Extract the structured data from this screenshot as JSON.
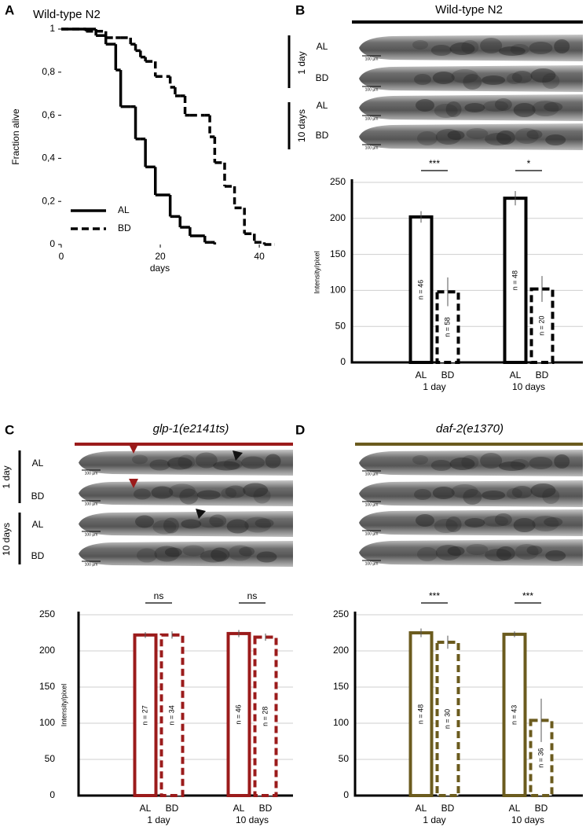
{
  "chart_data": [
    {
      "panel": "A",
      "type": "line",
      "step": true,
      "title": "Wild-type N2",
      "x_label": "days",
      "y_label": "Fraction alive",
      "x": [
        0,
        5,
        7,
        9,
        11,
        12,
        14,
        15,
        16,
        17,
        19,
        22,
        23,
        24,
        25,
        26,
        29,
        30,
        31,
        33,
        35,
        37,
        39,
        41,
        43
      ],
      "series": [
        {
          "name": "AL",
          "color": "#000000",
          "dashed": false,
          "values": [
            1,
            1,
            0.97,
            0.93,
            0.81,
            0.64,
            0.64,
            0.49,
            0.49,
            0.36,
            0.23,
            0.13,
            0.13,
            0.08,
            0.08,
            0.04,
            0.01,
            0.01,
            0,
            null,
            null,
            null,
            null,
            null,
            null
          ]
        },
        {
          "name": "BD",
          "color": "#000000",
          "dashed": true,
          "values": [
            1,
            0.99,
            0.99,
            0.96,
            0.96,
            0.96,
            0.93,
            0.9,
            0.87,
            0.85,
            0.78,
            0.73,
            0.69,
            0.69,
            0.6,
            0.6,
            0.6,
            0.5,
            0.38,
            0.27,
            0.17,
            0.05,
            0.01,
            0,
            0
          ]
        }
      ],
      "xlim": [
        0,
        43
      ],
      "ylim": [
        0,
        1
      ],
      "xticks": [
        0,
        20,
        40
      ],
      "yticks": [
        0,
        {
          "value": 0.2,
          "label": "0,2"
        },
        {
          "value": 0.4,
          "label": "0,4"
        },
        {
          "value": 0.6,
          "label": "0,6"
        },
        {
          "value": 0.8,
          "label": "0,8"
        },
        1
      ],
      "legend": "lower left"
    },
    {
      "panel": "B",
      "type": "bar",
      "title": "Wild-type N2",
      "italic_title": false,
      "image_rows": [
        "1 day",
        "10 days"
      ],
      "image_labels": [
        "AL",
        "BD"
      ],
      "scale_bar": "100 µm",
      "y_label": "Intensity/pixel",
      "groups": [
        "1 day",
        "10 days"
      ],
      "series": [
        {
          "name": "AL",
          "color": "#000000",
          "dashed": false,
          "values": [
            202,
            228
          ],
          "errors": [
            8,
            10
          ],
          "n_labels": [
            "n = 46",
            "n = 48"
          ]
        },
        {
          "name": "BD",
          "color": "#000000",
          "dashed": true,
          "values": [
            98,
            102
          ],
          "errors": [
            20,
            18
          ],
          "n_labels": [
            "n = 58",
            "n = 20"
          ]
        }
      ],
      "significance": [
        "***",
        "*"
      ],
      "ylim": [
        0,
        250
      ],
      "yticks": [
        0,
        50,
        100,
        150,
        200,
        250
      ],
      "grid": true
    },
    {
      "panel": "C",
      "type": "bar",
      "title": "glp-1(e2141ts)",
      "italic_title": true,
      "image_rows": [
        "1 day",
        "10 days"
      ],
      "image_labels": [
        "AL",
        "BD"
      ],
      "scale_bar": "100 µm",
      "y_label": "Intensity/pixel",
      "groups": [
        "1 day",
        "10 days"
      ],
      "series": [
        {
          "name": "AL",
          "color": "#9b1b1b",
          "dashed": false,
          "values": [
            222,
            224
          ],
          "errors": [
            4,
            5
          ],
          "n_labels": [
            "n = 27",
            "n = 46"
          ]
        },
        {
          "name": "BD",
          "color": "#9b1b1b",
          "dashed": true,
          "values": [
            222,
            219
          ],
          "errors": [
            5,
            5
          ],
          "n_labels": [
            "n = 34",
            "n = 28"
          ]
        }
      ],
      "significance": [
        "ns",
        "ns"
      ],
      "ylim": [
        0,
        250
      ],
      "yticks": [
        0,
        50,
        100,
        150,
        200,
        250
      ],
      "grid": true
    },
    {
      "panel": "D",
      "type": "bar",
      "title": "daf-2(e1370)",
      "italic_title": true,
      "scale_bar": "100 µm",
      "groups": [
        "1 day",
        "10 days"
      ],
      "series": [
        {
          "name": "AL",
          "color": "#6b5b1e",
          "dashed": false,
          "values": [
            225,
            223
          ],
          "errors": [
            6,
            4
          ],
          "n_labels": [
            "n = 48",
            "n = 43"
          ]
        },
        {
          "name": "BD",
          "color": "#6b5b1e",
          "dashed": true,
          "values": [
            212,
            104
          ],
          "errors": [
            9,
            30
          ],
          "n_labels": [
            "n = 30",
            "n = 36"
          ]
        }
      ],
      "significance": [
        "***",
        "***"
      ],
      "ylim": [
        0,
        250
      ],
      "yticks": [
        0,
        50,
        100,
        150,
        200,
        250
      ],
      "grid": true
    }
  ]
}
